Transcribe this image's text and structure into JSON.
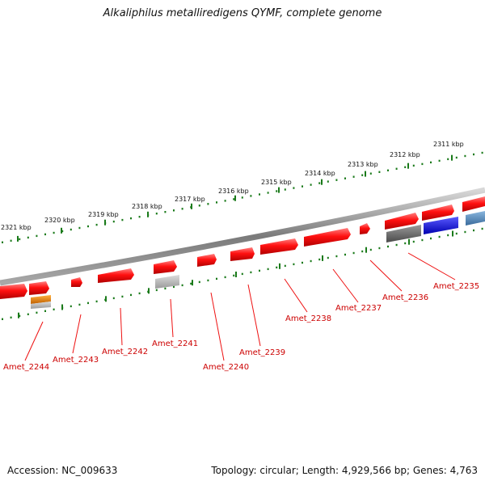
{
  "title": "Alkaliphilus metalliredigens QYMF, complete genome",
  "footer": {
    "accession": "Accession: NC_009633",
    "summary": "Topology: circular; Length: 4,929,566 bp; Genes: 4,763"
  },
  "colors": {
    "backbone": "#8f8f8f",
    "tick": "#1a7a1a",
    "gene": "#ee1111",
    "label": "#cc0000",
    "gray_gene": "#666666",
    "light_gray_gene": "#b5b5b5",
    "blue_gene": "#1414ee",
    "steel_blue_gene": "#5a8fc0",
    "orange_gene": "#f08a00"
  },
  "scale_labels": [
    "2311 kbp",
    "2312 kbp",
    "2313 kbp",
    "2314 kbp",
    "2315 kbp",
    "2316 kbp",
    "2317 kbp",
    "2318 kbp",
    "2319 kbp",
    "2320 kbp",
    "2321 kbp"
  ],
  "gene_labels": [
    "Amet_2235",
    "Amet_2236",
    "Amet_2237",
    "Amet_2238",
    "Amet_2239",
    "Amet_2240",
    "Amet_2241",
    "Amet_2242",
    "Amet_2243",
    "Amet_2244"
  ]
}
